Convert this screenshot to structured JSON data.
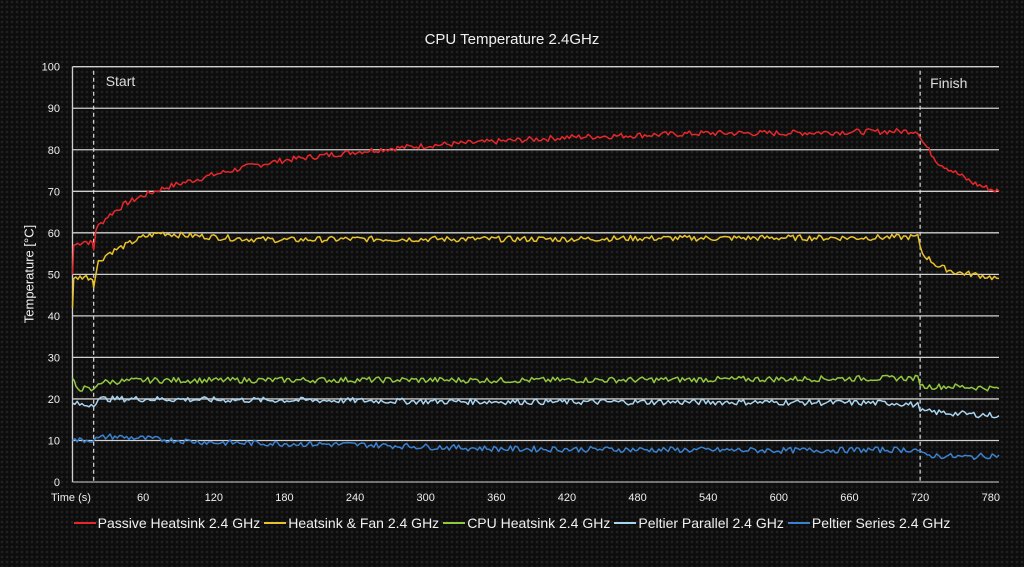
{
  "chart_data": {
    "type": "line",
    "title": "CPU Temperature 2.4GHz",
    "xlabel": "Time (s)",
    "ylabel": "Temperature [°C]",
    "xlim": [
      0,
      787
    ],
    "ylim": [
      0,
      100
    ],
    "xticks": [
      60,
      120,
      180,
      240,
      300,
      360,
      420,
      480,
      540,
      600,
      660,
      720,
      780
    ],
    "yticks": [
      0,
      10,
      20,
      30,
      40,
      50,
      60,
      70,
      80,
      90,
      100
    ],
    "grid": "horizontal",
    "legend_position": "bottom",
    "annotations": [
      {
        "label": "Start",
        "x": 18
      },
      {
        "label": "Finish",
        "x": 720
      }
    ],
    "series": [
      {
        "name": "Passive Heatsink 2.4 GHz",
        "color": "#e8272a",
        "points": [
          [
            0,
            50
          ],
          [
            1,
            57
          ],
          [
            10,
            58
          ],
          [
            17,
            57.5
          ],
          [
            18,
            56
          ],
          [
            20,
            61
          ],
          [
            30,
            64
          ],
          [
            45,
            67
          ],
          [
            60,
            69
          ],
          [
            80,
            71
          ],
          [
            100,
            72.5
          ],
          [
            120,
            74
          ],
          [
            150,
            76
          ],
          [
            180,
            77.5
          ],
          [
            210,
            78.5
          ],
          [
            240,
            79.5
          ],
          [
            270,
            80.3
          ],
          [
            300,
            81
          ],
          [
            330,
            81.5
          ],
          [
            360,
            82
          ],
          [
            420,
            83
          ],
          [
            480,
            83.5
          ],
          [
            540,
            84
          ],
          [
            600,
            84
          ],
          [
            660,
            84.3
          ],
          [
            718,
            84.5
          ],
          [
            722,
            82
          ],
          [
            735,
            77
          ],
          [
            750,
            74.5
          ],
          [
            765,
            72
          ],
          [
            780,
            70.5
          ],
          [
            787,
            70
          ]
        ]
      },
      {
        "name": "Heatsink & Fan 2.4 GHz",
        "color": "#e8c22a",
        "points": [
          [
            0,
            42
          ],
          [
            1,
            49
          ],
          [
            10,
            49.5
          ],
          [
            17,
            49
          ],
          [
            18,
            47.5
          ],
          [
            22,
            53
          ],
          [
            30,
            55
          ],
          [
            45,
            57
          ],
          [
            60,
            59
          ],
          [
            75,
            60
          ],
          [
            90,
            59.5
          ],
          [
            120,
            59
          ],
          [
            150,
            58.5
          ],
          [
            180,
            58.3
          ],
          [
            240,
            58.5
          ],
          [
            300,
            58.5
          ],
          [
            360,
            58.5
          ],
          [
            420,
            58.5
          ],
          [
            480,
            58.7
          ],
          [
            540,
            58.7
          ],
          [
            600,
            58.8
          ],
          [
            660,
            58.8
          ],
          [
            718,
            59
          ],
          [
            722,
            55
          ],
          [
            735,
            52
          ],
          [
            750,
            50.5
          ],
          [
            765,
            50
          ],
          [
            787,
            49
          ]
        ]
      },
      {
        "name": "CPU Heatsink 2.4 GHz",
        "color": "#92c83e",
        "points": [
          [
            0,
            25
          ],
          [
            3,
            22.5
          ],
          [
            10,
            22.5
          ],
          [
            18,
            22
          ],
          [
            22,
            24
          ],
          [
            60,
            24.5
          ],
          [
            120,
            24.5
          ],
          [
            240,
            24.6
          ],
          [
            360,
            24.5
          ],
          [
            480,
            24.6
          ],
          [
            600,
            24.8
          ],
          [
            700,
            25
          ],
          [
            718,
            25
          ],
          [
            722,
            23
          ],
          [
            750,
            23
          ],
          [
            787,
            22.5
          ]
        ]
      },
      {
        "name": "Peltier Parallel 2.4 GHz",
        "color": "#a9d4ef",
        "points": [
          [
            0,
            19
          ],
          [
            10,
            18.5
          ],
          [
            18,
            18.8
          ],
          [
            22,
            20
          ],
          [
            60,
            20
          ],
          [
            120,
            19.8
          ],
          [
            240,
            19.6
          ],
          [
            300,
            19.4
          ],
          [
            420,
            19.3
          ],
          [
            600,
            19.2
          ],
          [
            700,
            19
          ],
          [
            718,
            18.5
          ],
          [
            722,
            17
          ],
          [
            750,
            16.5
          ],
          [
            787,
            16
          ]
        ]
      },
      {
        "name": "Peltier Series 2.4 GHz",
        "color": "#3a82d0",
        "points": [
          [
            0,
            10
          ],
          [
            18,
            10.2
          ],
          [
            30,
            11
          ],
          [
            60,
            10.5
          ],
          [
            120,
            9.5
          ],
          [
            240,
            9
          ],
          [
            360,
            8
          ],
          [
            480,
            7.8
          ],
          [
            600,
            7.6
          ],
          [
            718,
            7.8
          ],
          [
            722,
            6.5
          ],
          [
            760,
            6
          ],
          [
            787,
            6.5
          ]
        ]
      }
    ]
  }
}
